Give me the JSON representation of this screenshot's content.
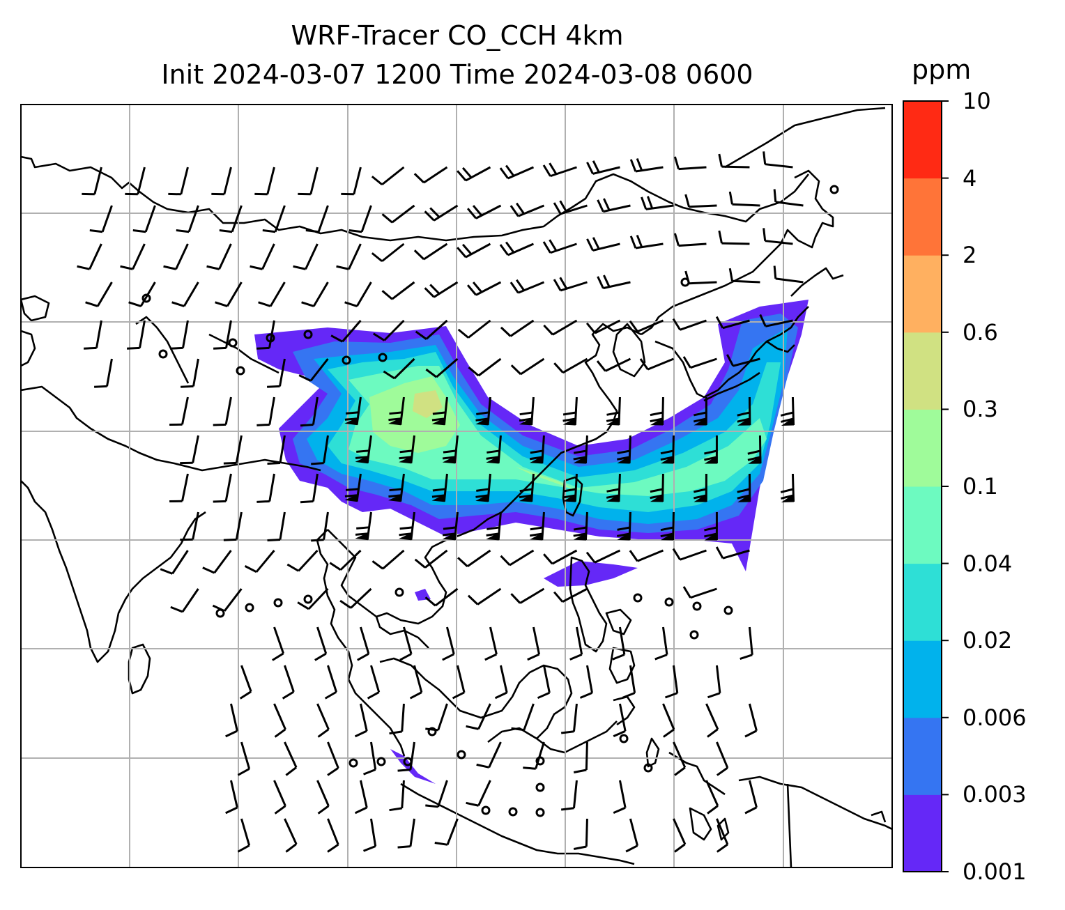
{
  "title": {
    "line1": "WRF-Tracer CO_CCH 4km",
    "line2": "Init 2024-03-07 1200 Time 2024-03-08 0600"
  },
  "colorbar": {
    "units": "ppm",
    "levels": [
      "0.001",
      "0.003",
      "0.006",
      "0.02",
      "0.04",
      "0.1",
      "0.3",
      "0.6",
      "2",
      "4",
      "10"
    ],
    "colors": [
      "#6528f7",
      "#3575f2",
      "#01b2ec",
      "#2edfd6",
      "#6dfac0",
      "#9ffb9a",
      "#d0e182",
      "#ffb060",
      "#ff7438",
      "#ff2a14"
    ]
  },
  "map": {
    "gridlines": true,
    "features": [
      "coastlines",
      "country-borders",
      "wind-barbs",
      "tracer-plume"
    ]
  }
}
